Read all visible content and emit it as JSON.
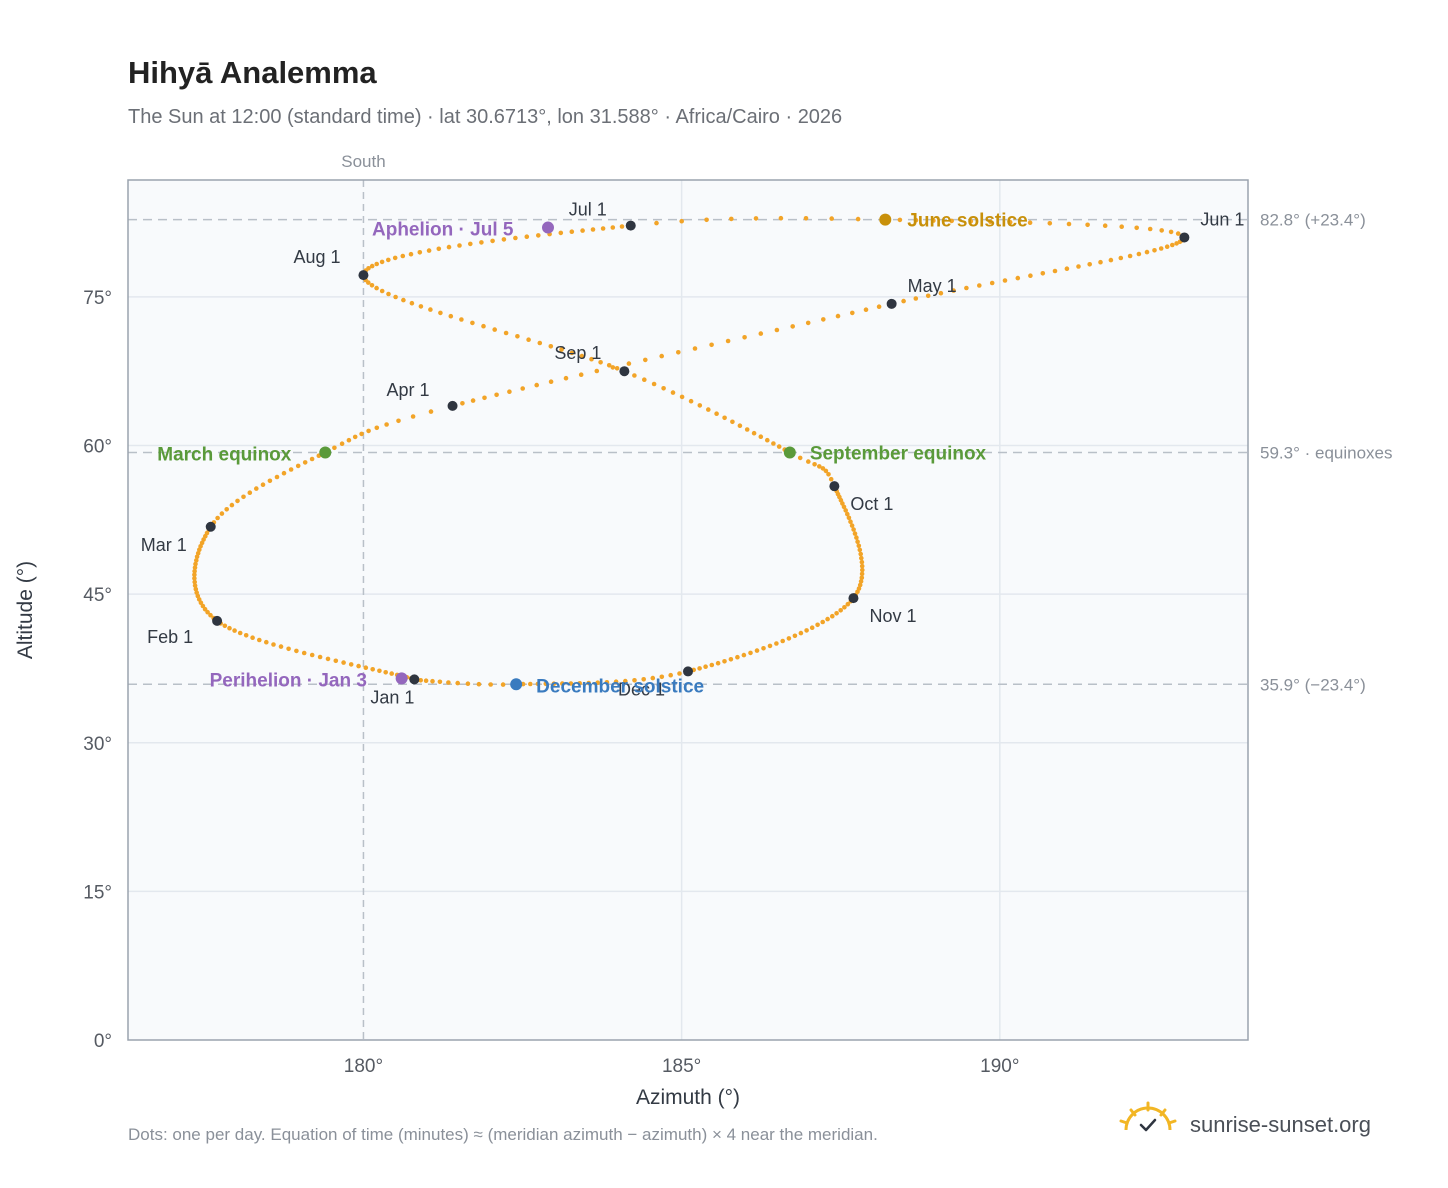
{
  "header": {
    "title": "Hihyā Analemma",
    "subtitle": "The Sun at 12:00 (standard time) · lat 30.6713°, lon 31.588° · Africa/Cairo · 2026"
  },
  "footer": {
    "note": "Dots: one per day. Equation of time (minutes) ≈ (meridian azimuth − azimuth) × 4 near the meridian.",
    "brand": "sunrise-sunset.org"
  },
  "colors": {
    "path": "#f2a428",
    "month": "#2f3540",
    "equinox": "#5a9a3a",
    "solstice_june": "#c8900a",
    "solstice_december": "#3a7bbf",
    "aphelion": "#9467bd",
    "grid": "#e3e8ee",
    "plot_bg": "#f8fafc",
    "frame": "#9aa3ae",
    "refline": "#b9c0c8"
  },
  "chart_data": {
    "type": "scatter",
    "title": "Hihyā Analemma",
    "xlabel": "Azimuth (°)",
    "ylabel": "Altitude (°)",
    "xlim": [
      176.3,
      193.9
    ],
    "ylim": [
      0,
      86.8
    ],
    "xticks": [
      {
        "value": 180,
        "label": "180°"
      },
      {
        "value": 185,
        "label": "185°"
      },
      {
        "value": 190,
        "label": "190°"
      }
    ],
    "yticks": [
      {
        "value": 0,
        "label": "0°"
      },
      {
        "value": 15,
        "label": "15°"
      },
      {
        "value": 30,
        "label": "30°"
      },
      {
        "value": 45,
        "label": "45°"
      },
      {
        "value": 60,
        "label": "60°"
      },
      {
        "value": 75,
        "label": "75°"
      }
    ],
    "grid": true,
    "meridian": {
      "azimuth": 180,
      "label": "South"
    },
    "reference_lines": [
      {
        "altitude": 82.8,
        "label": "82.8° (+23.4°)"
      },
      {
        "altitude": 59.3,
        "label": "59.3° · equinoxes"
      },
      {
        "altitude": 35.9,
        "label": "35.9° (−23.4°)"
      }
    ],
    "path_anchors": [
      {
        "doy": 1,
        "az": 180.8,
        "alt": 36.4
      },
      {
        "doy": 32,
        "az": 177.7,
        "alt": 42.3
      },
      {
        "doy": 60,
        "az": 177.6,
        "alt": 51.8
      },
      {
        "doy": 79,
        "az": 179.4,
        "alt": 59.3
      },
      {
        "doy": 91,
        "az": 181.4,
        "alt": 64.0
      },
      {
        "doy": 121,
        "az": 188.3,
        "alt": 74.3
      },
      {
        "doy": 152,
        "az": 192.9,
        "alt": 81.0
      },
      {
        "doy": 172,
        "az": 188.2,
        "alt": 82.8
      },
      {
        "doy": 182,
        "az": 184.2,
        "alt": 82.2
      },
      {
        "doy": 213,
        "az": 180.0,
        "alt": 77.2
      },
      {
        "doy": 244,
        "az": 184.1,
        "alt": 67.5
      },
      {
        "doy": 265,
        "az": 186.7,
        "alt": 59.3
      },
      {
        "doy": 274,
        "az": 187.4,
        "alt": 55.9
      },
      {
        "doy": 305,
        "az": 187.7,
        "alt": 44.6
      },
      {
        "doy": 335,
        "az": 185.1,
        "alt": 37.2
      },
      {
        "doy": 355,
        "az": 182.4,
        "alt": 35.9
      },
      {
        "doy": 365,
        "az": 180.9,
        "alt": 36.3
      }
    ],
    "months": [
      {
        "label": "Jan 1",
        "az": 180.8,
        "alt": 36.4
      },
      {
        "label": "Feb 1",
        "az": 177.7,
        "alt": 42.3
      },
      {
        "label": "Mar 1",
        "az": 177.6,
        "alt": 51.8
      },
      {
        "label": "Apr 1",
        "az": 181.4,
        "alt": 64.0
      },
      {
        "label": "May 1",
        "az": 188.3,
        "alt": 74.3
      },
      {
        "label": "Jun 1",
        "az": 192.9,
        "alt": 81.0
      },
      {
        "label": "Jul 1",
        "az": 184.2,
        "alt": 82.2
      },
      {
        "label": "Aug 1",
        "az": 180.0,
        "alt": 77.2
      },
      {
        "label": "Sep 1",
        "az": 184.1,
        "alt": 67.5
      },
      {
        "label": "Oct 1",
        "az": 187.4,
        "alt": 55.9
      },
      {
        "label": "Nov 1",
        "az": 187.7,
        "alt": 44.6
      },
      {
        "label": "Dec 1",
        "az": 185.1,
        "alt": 37.2
      }
    ],
    "events": [
      {
        "label": "March equinox",
        "az": 179.4,
        "alt": 59.3,
        "color_key": "equinox"
      },
      {
        "label": "June solstice",
        "az": 188.2,
        "alt": 82.8,
        "color_key": "solstice_june"
      },
      {
        "label": "September equinox",
        "az": 186.7,
        "alt": 59.3,
        "color_key": "equinox"
      },
      {
        "label": "December solstice",
        "az": 182.4,
        "alt": 35.9,
        "color_key": "solstice_december"
      },
      {
        "label": "Perihelion · Jan 3",
        "az": 180.6,
        "alt": 36.5,
        "color_key": "aphelion"
      },
      {
        "label": "Aphelion · Jul 5",
        "az": 182.9,
        "alt": 82.0,
        "color_key": "aphelion"
      }
    ]
  }
}
